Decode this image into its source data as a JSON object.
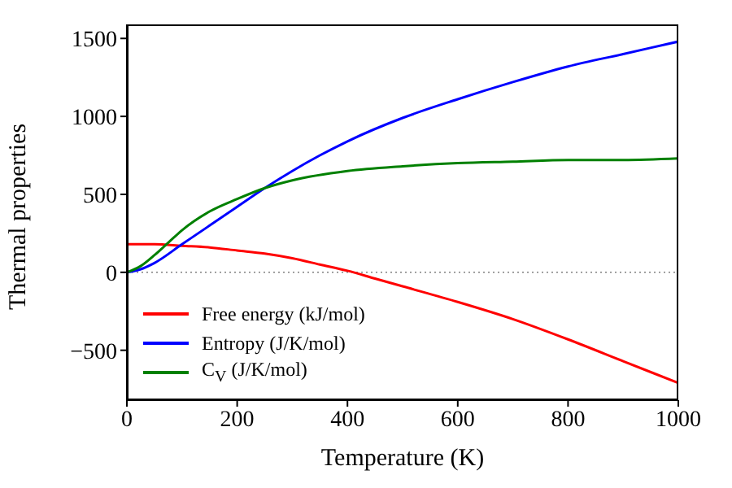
{
  "chart_data": {
    "type": "line",
    "xlabel": "Temperature (K)",
    "ylabel": "Thermal properties",
    "xlim": [
      0,
      1000
    ],
    "xticks": [
      0,
      200,
      400,
      600,
      800,
      1000
    ],
    "ylim": [
      -820,
      1590
    ],
    "yticks": [
      -500,
      0,
      500,
      1000,
      1500
    ],
    "legend": "bottom left",
    "line_style": "solid",
    "marker": "none",
    "ref_lines": [
      {
        "axis": "y",
        "value": 0,
        "color": "#808080",
        "line_style": "dotted"
      }
    ],
    "series": [
      {
        "name": "Free energy (kJ/mol)",
        "color": "#ff0000",
        "x": [
          0,
          50,
          100,
          150,
          200,
          250,
          300,
          350,
          400,
          450,
          500,
          600,
          700,
          800,
          900,
          1000
        ],
        "values": [
          180,
          180,
          170,
          160,
          140,
          120,
          90,
          50,
          10,
          -40,
          -90,
          -190,
          -300,
          -430,
          -570,
          -710
        ]
      },
      {
        "name": "Entropy (J/K/mol)",
        "color": "#0000ff",
        "x": [
          0,
          25,
          50,
          100,
          150,
          200,
          250,
          300,
          350,
          400,
          500,
          600,
          700,
          800,
          900,
          1000
        ],
        "values": [
          0,
          20,
          60,
          180,
          300,
          420,
          540,
          650,
          750,
          840,
          990,
          1110,
          1220,
          1320,
          1400,
          1480
        ]
      },
      {
        "name": "C$_{V}$ (J/K/mol)",
        "color": "#008000",
        "x": [
          0,
          25,
          50,
          75,
          100,
          150,
          200,
          250,
          300,
          400,
          500,
          600,
          700,
          800,
          900,
          1000
        ],
        "values": [
          0,
          40,
          110,
          190,
          270,
          390,
          470,
          540,
          590,
          650,
          680,
          700,
          710,
          720,
          720,
          730
        ]
      }
    ]
  }
}
